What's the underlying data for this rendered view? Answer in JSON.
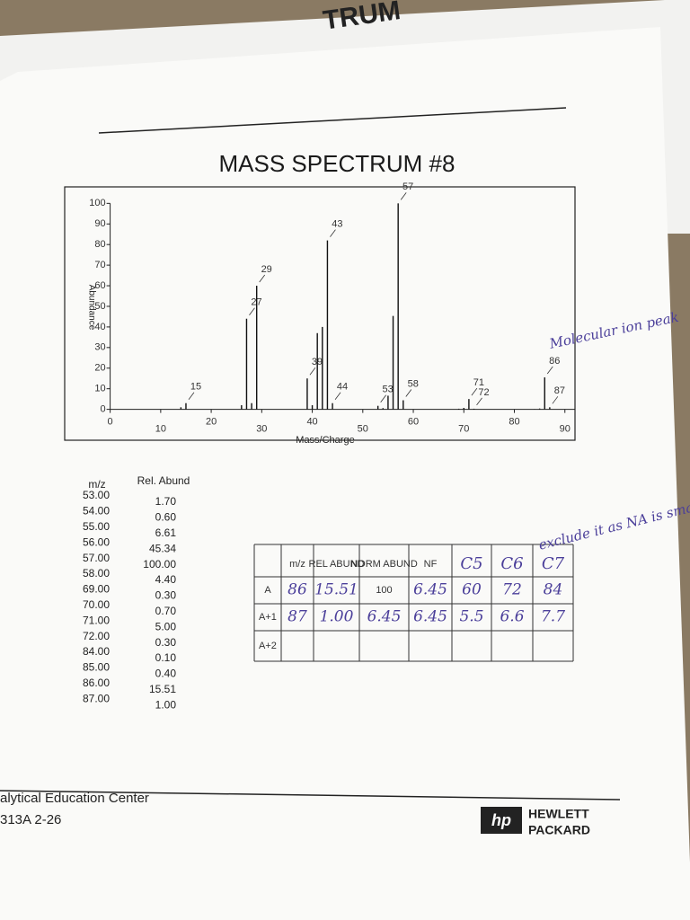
{
  "top_fragment": "TRUM",
  "chart_data": {
    "type": "bar",
    "title": "MASS SPECTRUM #8",
    "x_label": "Mass/Charge",
    "y_label": "Abundance",
    "x": [
      14,
      15,
      26,
      27,
      28,
      29,
      39,
      40,
      41,
      42,
      43,
      44,
      53,
      54,
      55,
      56,
      57,
      58,
      69,
      70,
      71,
      72,
      84,
      85,
      86,
      87
    ],
    "values": [
      1,
      3,
      2,
      44,
      3,
      60,
      15,
      2,
      37,
      40,
      82,
      3,
      1.7,
      0.6,
      6.61,
      45.34,
      100,
      4.4,
      0.3,
      0.7,
      5,
      0.3,
      0.1,
      0.4,
      15.51,
      1
    ],
    "peak_labels": [
      null,
      "15",
      null,
      "27",
      null,
      "29",
      "39",
      null,
      null,
      null,
      "43",
      "44",
      "53",
      null,
      null,
      null,
      "57",
      "58",
      null,
      null,
      "71",
      "72",
      null,
      null,
      "86",
      "87"
    ],
    "color": "#111111",
    "xlim": [
      -9,
      92
    ],
    "xticks": [
      0,
      10,
      20,
      30,
      40,
      50,
      60,
      70,
      80,
      90
    ],
    "ylim": [
      -15,
      108
    ],
    "yticks": [
      0,
      10,
      20,
      30,
      40,
      50,
      60,
      70,
      80,
      90,
      100
    ],
    "annotation": "Molecular ion peak"
  },
  "peak_table": {
    "headers": [
      "m/z",
      "Rel. Abund"
    ],
    "rows": [
      [
        "53.00",
        "1.70"
      ],
      [
        "54.00",
        "0.60"
      ],
      [
        "55.00",
        "6.61"
      ],
      [
        "56.00",
        "45.34"
      ],
      [
        "57.00",
        "100.00"
      ],
      [
        "58.00",
        "4.40"
      ],
      [
        "69.00",
        "0.30"
      ],
      [
        "70.00",
        "0.70"
      ],
      [
        "71.00",
        "5.00"
      ],
      [
        "72.00",
        "0.30"
      ],
      [
        "84.00",
        "0.10"
      ],
      [
        "85.00",
        "0.40"
      ],
      [
        "86.00",
        "15.51"
      ],
      [
        "87.00",
        "1.00"
      ]
    ]
  },
  "isotope_table": {
    "headers": [
      null,
      "m/z",
      "REL ABUND",
      "NORM ABUND",
      "NF",
      "C5",
      "C6",
      "C7"
    ],
    "rows": [
      [
        "A",
        "86",
        "15.51",
        "100",
        "6.45",
        "60",
        "72",
        "84"
      ],
      [
        "A+1",
        "87",
        "1.00",
        "6.45",
        "6.45",
        "5.5",
        "6.6",
        "7.7"
      ],
      [
        "A+2",
        null,
        null,
        null,
        null,
        null,
        null,
        null
      ]
    ]
  },
  "note": "exclude it as NA is smallest.",
  "footer": {
    "line1": "alytical Education Center",
    "line2": "313A  2-26",
    "logo": "hp",
    "brand1": "HEWLETT",
    "brand2": "PACKARD"
  }
}
